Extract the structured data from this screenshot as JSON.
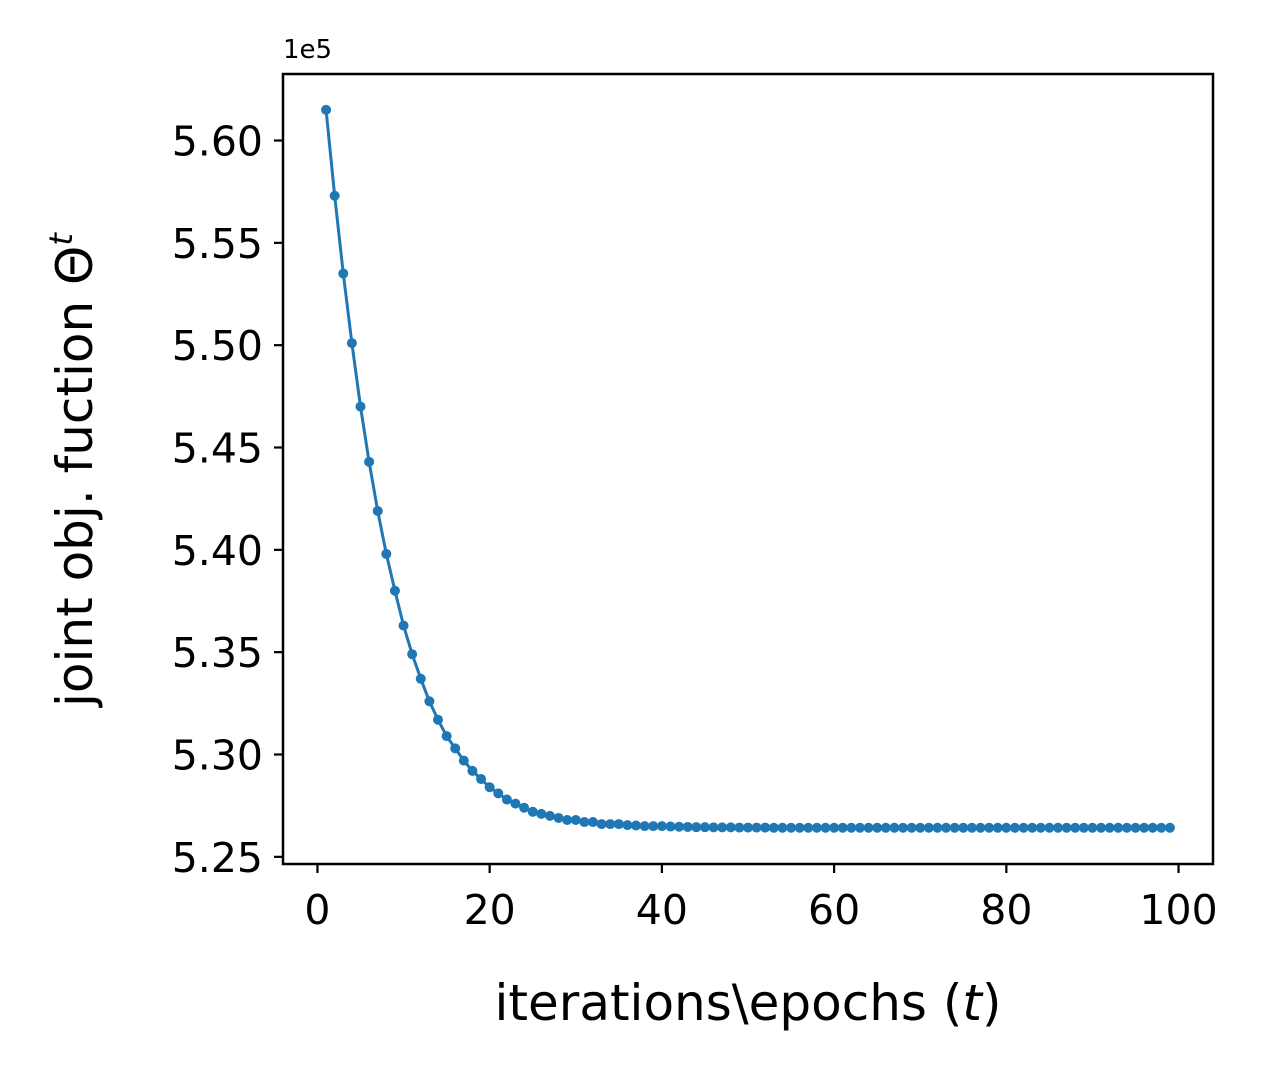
{
  "chart_data": {
    "type": "line",
    "title": "",
    "xlabel_main": "iterations\\epochs (",
    "xlabel_var": "t",
    "xlabel_end": ")",
    "ylabel_main": "joint obj. fuction Θ",
    "ylabel_sup": "t",
    "y_offset_text": "1e5",
    "xlim": [
      -4,
      104
    ],
    "ylim": [
      5.2465,
      5.6325
    ],
    "xticks": [
      0,
      20,
      40,
      60,
      80,
      100
    ],
    "xtick_labels": [
      "0",
      "20",
      "40",
      "60",
      "80",
      "100"
    ],
    "yticks": [
      5.25,
      5.3,
      5.35,
      5.4,
      5.45,
      5.5,
      5.55,
      5.6
    ],
    "ytick_labels": [
      "5.25",
      "5.30",
      "5.35",
      "5.40",
      "5.45",
      "5.50",
      "5.55",
      "5.60"
    ],
    "grid": false,
    "legend": "none",
    "color": "#1f77b4",
    "series": [
      {
        "x": [
          1,
          2,
          3,
          4,
          5,
          6,
          7,
          8,
          9,
          10,
          11,
          12,
          13,
          14,
          15,
          16,
          17,
          18,
          19,
          20,
          21,
          22,
          23,
          24,
          25,
          26,
          27,
          28,
          29,
          30,
          31,
          32,
          33,
          34,
          35,
          36,
          37,
          38,
          39,
          40,
          41,
          42,
          43,
          44,
          45,
          46,
          47,
          48,
          49,
          50,
          51,
          52,
          53,
          54,
          55,
          56,
          57,
          58,
          59,
          60,
          61,
          62,
          63,
          64,
          65,
          66,
          67,
          68,
          69,
          70,
          71,
          72,
          73,
          74,
          75,
          76,
          77,
          78,
          79,
          80,
          81,
          82,
          83,
          84,
          85,
          86,
          87,
          88,
          89,
          90,
          91,
          92,
          93,
          94,
          95,
          96,
          97,
          98,
          99
        ],
        "values": [
          5.615,
          5.573,
          5.535,
          5.501,
          5.47,
          5.443,
          5.419,
          5.398,
          5.38,
          5.363,
          5.349,
          5.337,
          5.326,
          5.317,
          5.309,
          5.303,
          5.297,
          5.292,
          5.288,
          5.284,
          5.281,
          5.278,
          5.276,
          5.274,
          5.272,
          5.271,
          5.27,
          5.269,
          5.268,
          5.268,
          5.267,
          5.267,
          5.266,
          5.266,
          5.266,
          5.2655,
          5.2653,
          5.265,
          5.265,
          5.265,
          5.2648,
          5.2647,
          5.2646,
          5.2645,
          5.2645,
          5.2644,
          5.2644,
          5.2644,
          5.2643,
          5.2643,
          5.2643,
          5.2643,
          5.2642,
          5.2642,
          5.2642,
          5.2642,
          5.2642,
          5.2642,
          5.2642,
          5.2642,
          5.2642,
          5.2642,
          5.2642,
          5.2642,
          5.2642,
          5.2642,
          5.2642,
          5.2642,
          5.2642,
          5.2642,
          5.2642,
          5.2642,
          5.2642,
          5.2642,
          5.2642,
          5.2642,
          5.2642,
          5.2642,
          5.2642,
          5.2642,
          5.2642,
          5.2642,
          5.2642,
          5.2642,
          5.2642,
          5.2642,
          5.2642,
          5.2642,
          5.2642,
          5.2642,
          5.2642,
          5.2642,
          5.2642,
          5.2642,
          5.2642,
          5.2642,
          5.2642,
          5.2642,
          5.2642
        ]
      }
    ]
  }
}
